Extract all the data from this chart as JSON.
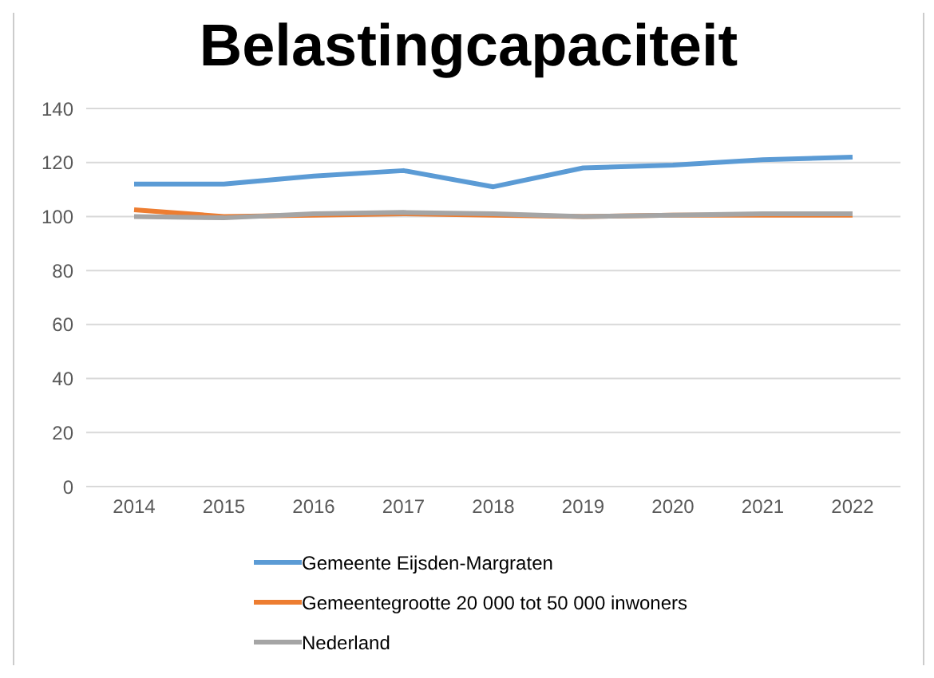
{
  "chart_data": {
    "type": "line",
    "title": "Belastingcapaciteit",
    "categories": [
      "2014",
      "2015",
      "2016",
      "2017",
      "2018",
      "2019",
      "2020",
      "2021",
      "2022"
    ],
    "series": [
      {
        "name": "Gemeente Eijsden-Margraten",
        "color": "#5b9bd5",
        "values": [
          112,
          112,
          115,
          117,
          111,
          118,
          119,
          121,
          122
        ]
      },
      {
        "name": "Gemeentegrootte 20 000 tot 50 000 inwoners",
        "color": "#ed7d31",
        "values": [
          102.5,
          100,
          100.5,
          101,
          100.5,
          100,
          100.5,
          100.5,
          100.5
        ]
      },
      {
        "name": "Nederland",
        "color": "#a5a5a5",
        "values": [
          100,
          99.5,
          101,
          101.5,
          101,
          100,
          100.5,
          101,
          101
        ]
      }
    ],
    "ylim": [
      0,
      140
    ],
    "yticks": [
      0,
      20,
      40,
      60,
      80,
      100,
      120,
      140
    ],
    "grid": "y",
    "legend": "bottom",
    "marker": "none",
    "line_style": "solid"
  }
}
